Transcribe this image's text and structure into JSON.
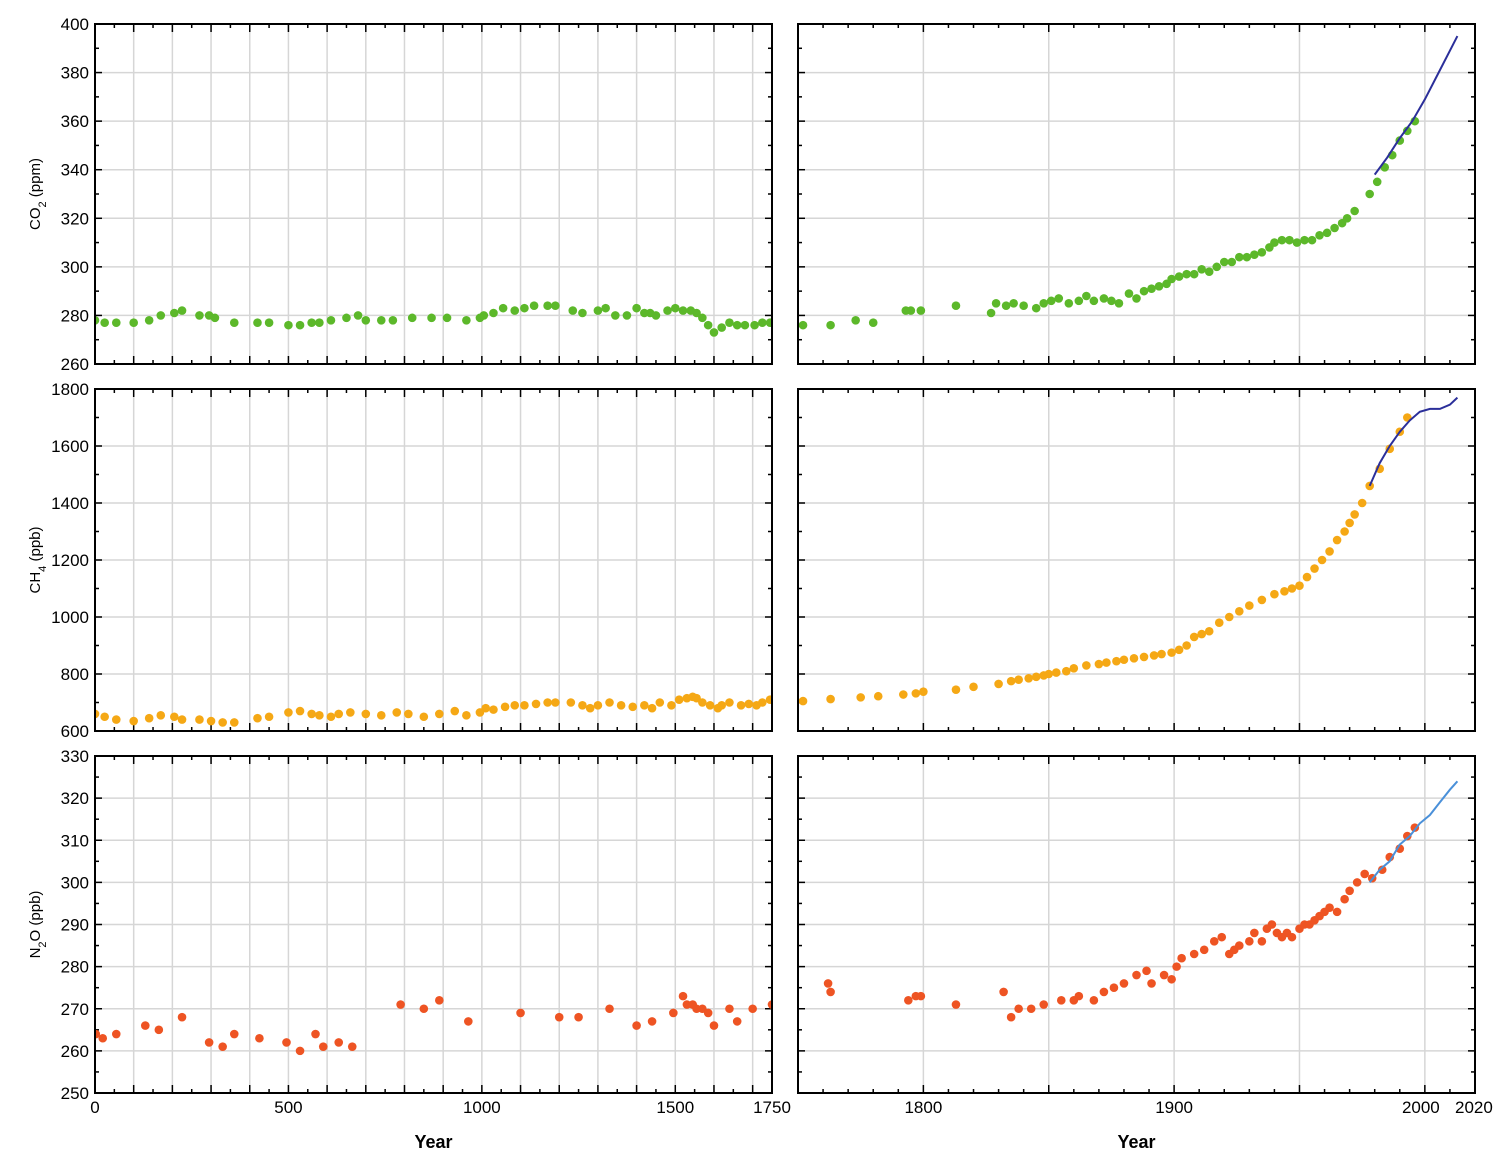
{
  "chart_data": [
    {
      "type": "scatter",
      "panel": "co2-early",
      "ylabel": "CO2 (ppm)",
      "ylabel_main": "CO",
      "ylabel_sub": "2",
      "ylabel_unit": " (ppm)",
      "xlim": [
        0,
        1750
      ],
      "ylim": [
        260,
        400
      ],
      "y_ticks": [
        260,
        280,
        300,
        320,
        340,
        360,
        380,
        400
      ],
      "x_ticks": [],
      "colors": {
        "points": "#5cb82a"
      },
      "series": [
        {
          "kind": "points",
          "x": [
            0,
            25,
            55,
            100,
            140,
            170,
            205,
            225,
            270,
            295,
            310,
            360,
            420,
            450,
            500,
            530,
            560,
            580,
            610,
            650,
            680,
            700,
            740,
            770,
            820,
            870,
            910,
            960,
            995,
            1005,
            1030,
            1055,
            1085,
            1110,
            1135,
            1170,
            1190,
            1235,
            1260,
            1300,
            1320,
            1345,
            1375,
            1400,
            1420,
            1435,
            1450,
            1480,
            1500,
            1520,
            1540,
            1555,
            1570,
            1585,
            1600,
            1620,
            1640,
            1660,
            1680,
            1705,
            1725,
            1745
          ],
          "y": [
            278,
            277,
            277,
            277,
            278,
            280,
            281,
            282,
            280,
            280,
            279,
            277,
            277,
            277,
            276,
            276,
            277,
            277,
            278,
            279,
            280,
            278,
            278,
            278,
            279,
            279,
            279,
            278,
            279,
            280,
            281,
            283,
            282,
            283,
            284,
            284,
            284,
            282,
            281,
            282,
            283,
            280,
            280,
            283,
            281,
            281,
            280,
            282,
            283,
            282,
            282,
            281,
            279,
            276,
            273,
            275,
            277,
            276,
            276,
            276,
            277,
            277
          ]
        }
      ]
    },
    {
      "type": "scatter",
      "panel": "co2-late",
      "xlim": [
        1750,
        2020
      ],
      "ylim": [
        260,
        400
      ],
      "y_ticks": [
        260,
        280,
        300,
        320,
        340,
        360,
        380,
        400
      ],
      "x_ticks": [],
      "colors": {
        "points": "#5cb82a",
        "line": "#2b2f9a"
      },
      "series": [
        {
          "kind": "points",
          "x": [
            1752,
            1763,
            1773,
            1780,
            1793,
            1795,
            1799,
            1813,
            1827,
            1829,
            1833,
            1836,
            1840,
            1845,
            1848,
            1851,
            1854,
            1858,
            1862,
            1865,
            1868,
            1872,
            1875,
            1878,
            1882,
            1885,
            1888,
            1891,
            1894,
            1897,
            1899,
            1902,
            1905,
            1908,
            1911,
            1914,
            1917,
            1920,
            1923,
            1926,
            1929,
            1932,
            1935,
            1938,
            1940,
            1943,
            1946,
            1949,
            1952,
            1955,
            1958,
            1961,
            1964,
            1967,
            1969,
            1972,
            1978,
            1981,
            1984,
            1987,
            1990,
            1993,
            1996
          ],
          "y": [
            276,
            276,
            278,
            277,
            282,
            282,
            282,
            284,
            281,
            285,
            284,
            285,
            284,
            283,
            285,
            286,
            287,
            285,
            286,
            288,
            286,
            287,
            286,
            285,
            289,
            287,
            290,
            291,
            292,
            293,
            295,
            296,
            297,
            297,
            299,
            298,
            300,
            302,
            302,
            304,
            304,
            305,
            306,
            308,
            310,
            311,
            311,
            310,
            311,
            311,
            313,
            314,
            316,
            318,
            320,
            323,
            330,
            335,
            341,
            346,
            352,
            356,
            360
          ]
        },
        {
          "kind": "line",
          "x": [
            1980,
            1985,
            1990,
            1995,
            2000,
            2005,
            2010,
            2013
          ],
          "y": [
            338,
            345,
            353,
            360,
            369,
            379,
            389,
            395
          ]
        }
      ]
    },
    {
      "type": "scatter",
      "panel": "ch4-early",
      "ylabel": "CH4 (ppb)",
      "ylabel_main": "CH",
      "ylabel_sub": "4",
      "ylabel_unit": " (ppb)",
      "xlim": [
        0,
        1750
      ],
      "ylim": [
        600,
        1800
      ],
      "y_ticks": [
        600,
        800,
        1000,
        1200,
        1400,
        1600,
        1800
      ],
      "x_ticks": [],
      "colors": {
        "points": "#f5a815"
      },
      "series": [
        {
          "kind": "points",
          "x": [
            0,
            25,
            55,
            100,
            140,
            170,
            205,
            225,
            270,
            300,
            330,
            360,
            420,
            450,
            500,
            530,
            560,
            580,
            610,
            630,
            660,
            700,
            740,
            780,
            810,
            850,
            890,
            930,
            960,
            995,
            1010,
            1030,
            1060,
            1085,
            1110,
            1140,
            1170,
            1190,
            1230,
            1260,
            1280,
            1300,
            1330,
            1360,
            1390,
            1420,
            1440,
            1460,
            1490,
            1510,
            1530,
            1545,
            1555,
            1570,
            1590,
            1610,
            1620,
            1640,
            1670,
            1690,
            1710,
            1725,
            1745
          ],
          "y": [
            660,
            650,
            640,
            635,
            645,
            655,
            650,
            640,
            640,
            635,
            630,
            630,
            645,
            650,
            665,
            670,
            660,
            655,
            650,
            660,
            665,
            660,
            655,
            665,
            660,
            650,
            660,
            670,
            655,
            665,
            680,
            675,
            685,
            690,
            690,
            695,
            700,
            700,
            700,
            690,
            680,
            690,
            700,
            690,
            685,
            690,
            680,
            700,
            690,
            710,
            715,
            720,
            715,
            700,
            690,
            680,
            690,
            700,
            690,
            695,
            690,
            700,
            710
          ]
        }
      ]
    },
    {
      "type": "scatter",
      "panel": "ch4-late",
      "xlim": [
        1750,
        2020
      ],
      "ylim": [
        600,
        1800
      ],
      "y_ticks": [
        600,
        800,
        1000,
        1200,
        1400,
        1600,
        1800
      ],
      "x_ticks": [],
      "colors": {
        "points": "#f5a815",
        "line": "#2b2f9a"
      },
      "series": [
        {
          "kind": "points",
          "x": [
            1752,
            1763,
            1775,
            1782,
            1792,
            1797,
            1800,
            1813,
            1820,
            1830,
            1835,
            1838,
            1842,
            1845,
            1848,
            1850,
            1853,
            1857,
            1860,
            1865,
            1870,
            1873,
            1877,
            1880,
            1884,
            1888,
            1892,
            1895,
            1899,
            1902,
            1905,
            1908,
            1911,
            1914,
            1918,
            1922,
            1926,
            1930,
            1935,
            1940,
            1944,
            1947,
            1950,
            1953,
            1956,
            1959,
            1962,
            1965,
            1968,
            1970,
            1972,
            1975,
            1978,
            1982,
            1986,
            1990,
            1993
          ],
          "y": [
            705,
            712,
            718,
            722,
            728,
            732,
            738,
            745,
            755,
            765,
            775,
            780,
            785,
            790,
            795,
            800,
            805,
            810,
            820,
            830,
            835,
            840,
            845,
            850,
            855,
            860,
            865,
            870,
            875,
            885,
            900,
            930,
            940,
            950,
            980,
            1000,
            1020,
            1040,
            1060,
            1080,
            1090,
            1100,
            1110,
            1140,
            1170,
            1200,
            1230,
            1270,
            1300,
            1330,
            1360,
            1400,
            1460,
            1520,
            1590,
            1650,
            1700
          ]
        },
        {
          "kind": "line",
          "x": [
            1978,
            1982,
            1986,
            1990,
            1994,
            1998,
            2002,
            2006,
            2010,
            2013
          ],
          "y": [
            1460,
            1540,
            1600,
            1650,
            1690,
            1720,
            1730,
            1730,
            1745,
            1770
          ]
        }
      ]
    },
    {
      "type": "scatter",
      "panel": "n2o-early",
      "ylabel": "N2O (ppb)",
      "ylabel_main": "N",
      "ylabel_sub": "2",
      "ylabel_unit": "O (ppb)",
      "xlim": [
        0,
        1750
      ],
      "ylim": [
        250,
        330
      ],
      "y_ticks": [
        250,
        260,
        270,
        280,
        290,
        300,
        310,
        320,
        330
      ],
      "x_ticks": [
        0,
        500,
        1000,
        1500,
        1750
      ],
      "xlabel": "Year",
      "colors": {
        "points": "#ee5423"
      },
      "series": [
        {
          "kind": "points",
          "x": [
            2,
            20,
            55,
            130,
            165,
            225,
            295,
            330,
            360,
            425,
            495,
            530,
            570,
            590,
            630,
            665,
            790,
            850,
            890,
            965,
            1100,
            1200,
            1250,
            1330,
            1400,
            1440,
            1495,
            1520,
            1530,
            1545,
            1555,
            1570,
            1585,
            1600,
            1640,
            1660,
            1700,
            1750
          ],
          "y": [
            264,
            263,
            264,
            266,
            265,
            268,
            262,
            261,
            264,
            263,
            262,
            260,
            264,
            261,
            262,
            261,
            271,
            270,
            272,
            267,
            269,
            268,
            268,
            270,
            266,
            267,
            269,
            273,
            271,
            271,
            270,
            270,
            269,
            266,
            270,
            267,
            270,
            271
          ]
        }
      ]
    },
    {
      "type": "scatter",
      "panel": "n2o-late",
      "xlim": [
        1750,
        2020
      ],
      "ylim": [
        250,
        330
      ],
      "y_ticks": [
        250,
        260,
        270,
        280,
        290,
        300,
        310,
        320,
        330
      ],
      "x_ticks": [
        1800,
        1900,
        2000,
        2020
      ],
      "xlabel": "Year",
      "colors": {
        "points": "#ee5423",
        "line": "#4a90d9"
      },
      "series": [
        {
          "kind": "points",
          "x": [
            1762,
            1763,
            1794,
            1797,
            1799,
            1813,
            1832,
            1835,
            1838,
            1843,
            1848,
            1855,
            1860,
            1862,
            1868,
            1872,
            1876,
            1880,
            1885,
            1889,
            1891,
            1896,
            1899,
            1901,
            1903,
            1908,
            1912,
            1916,
            1919,
            1922,
            1924,
            1926,
            1930,
            1932,
            1935,
            1937,
            1939,
            1941,
            1943,
            1945,
            1947,
            1950,
            1952,
            1954,
            1956,
            1958,
            1960,
            1962,
            1965,
            1968,
            1970,
            1973,
            1976,
            1979,
            1983,
            1986,
            1990,
            1993,
            1996
          ],
          "y": [
            276,
            274,
            272,
            273,
            273,
            271,
            274,
            268,
            270,
            270,
            271,
            272,
            272,
            273,
            272,
            274,
            275,
            276,
            278,
            279,
            276,
            278,
            277,
            280,
            282,
            283,
            284,
            286,
            287,
            283,
            284,
            285,
            286,
            288,
            286,
            289,
            290,
            288,
            287,
            288,
            287,
            289,
            290,
            290,
            291,
            292,
            293,
            294,
            293,
            296,
            298,
            300,
            302,
            301,
            303,
            306,
            308,
            311,
            313
          ]
        },
        {
          "kind": "line",
          "x": [
            1978,
            1982,
            1986,
            1990,
            1994,
            1998,
            2002,
            2006,
            2010,
            2013
          ],
          "y": [
            300,
            303,
            305,
            309,
            311,
            314,
            316,
            319,
            322,
            324
          ]
        }
      ]
    }
  ]
}
